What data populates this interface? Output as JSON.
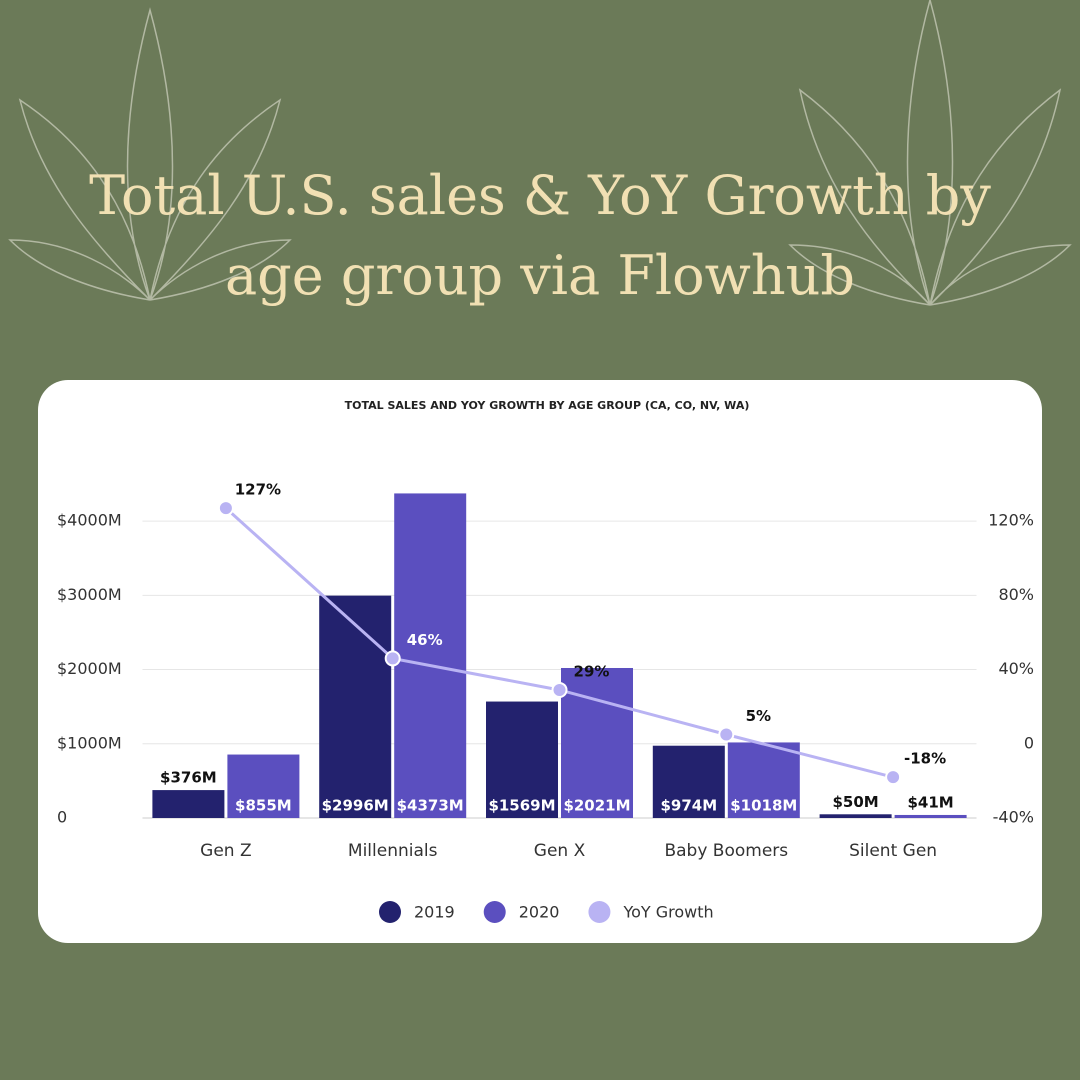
{
  "header": {
    "title_lines": [
      "Total U.S. sales & YoY Growth by",
      "age group via Flowhub"
    ]
  },
  "chart_data": {
    "type": "bar",
    "title": "TOTAL SALES AND YOY GROWTH BY AGE GROUP (CA, CO, NV, WA)",
    "categories": [
      "Gen Z",
      "Millennials",
      "Gen X",
      "Baby Boomers",
      "Silent Gen"
    ],
    "series": [
      {
        "name": "2019",
        "color": "#23226e",
        "values": [
          376,
          2996,
          1569,
          974,
          50
        ],
        "value_labels": [
          "$376M",
          "$2996M",
          "$1569M",
          "$974M",
          "$50M"
        ]
      },
      {
        "name": "2020",
        "color": "#5b4fbf",
        "values": [
          855,
          4373,
          2021,
          1018,
          41
        ],
        "value_labels": [
          "$855M",
          "$4373M",
          "$2021M",
          "$1018M",
          "$41M"
        ]
      },
      {
        "name": "YoY Growth",
        "color": "#b9b3f3",
        "type": "line",
        "axis": "y2",
        "values": [
          127,
          46,
          29,
          5,
          -18
        ],
        "value_labels": [
          "127%",
          "46%",
          "29%",
          "5%",
          "-18%"
        ]
      }
    ],
    "ylim": [
      0,
      4500
    ],
    "yticks": [
      0,
      {
        "value": 1000,
        "label": "$1000M"
      },
      {
        "value": 2000,
        "label": "$2000M"
      },
      {
        "value": 3000,
        "label": "$3000M"
      },
      {
        "value": 4000,
        "label": "$4000M"
      }
    ],
    "y2lim": [
      -40,
      140
    ],
    "y2ticks": [
      {
        "value": -40,
        "label": "-40%"
      },
      0,
      {
        "value": 40,
        "label": "40%"
      },
      {
        "value": 80,
        "label": "80%"
      },
      {
        "value": 120,
        "label": "120%"
      }
    ],
    "grid": true,
    "legend": "bottom"
  }
}
